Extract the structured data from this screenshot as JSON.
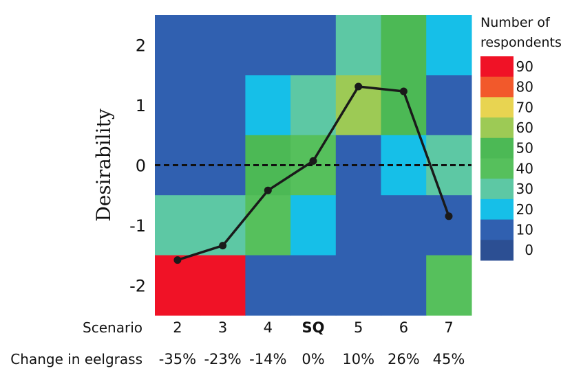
{
  "chart_data": {
    "type": "heatmap",
    "ylabel": "Desirability",
    "y_ticks": [
      "2",
      "1",
      "0",
      "-1",
      "-2"
    ],
    "y_levels": [
      2,
      1,
      0,
      -1,
      -2
    ],
    "row_labels": {
      "scenario": "Scenario",
      "change": "Change in eelgrass"
    },
    "scenarios": [
      "2",
      "3",
      "4",
      "SQ",
      "5",
      "6",
      "7"
    ],
    "highlight_scenario": "SQ",
    "eelgrass_change": [
      "-35%",
      "-23%",
      "-14%",
      "0%",
      "10%",
      "26%",
      "45%"
    ],
    "heatmap_values": [
      [
        8,
        7,
        7,
        7,
        33,
        46,
        20
      ],
      [
        9,
        9,
        20,
        31,
        60,
        45,
        8
      ],
      [
        7,
        7,
        45,
        42,
        10,
        15,
        32
      ],
      [
        32,
        30,
        43,
        21,
        10,
        10,
        13
      ],
      [
        92,
        98,
        14,
        10,
        10,
        12,
        43
      ]
    ],
    "mean_line": {
      "x": [
        "2",
        "3",
        "4",
        "SQ",
        "5",
        "6",
        "7"
      ],
      "y": [
        -1.58,
        -1.34,
        -0.42,
        0.07,
        1.31,
        1.23,
        -0.85
      ]
    },
    "reference_line_y": 0,
    "colorbar": {
      "title_lines": [
        "Number of",
        "respondents"
      ],
      "ticks": [
        "90",
        "80",
        "70",
        "60",
        "50",
        "40",
        "30",
        "20",
        "10",
        "0"
      ],
      "colors": [
        "#f01226",
        "#f2592b",
        "#e8d451",
        "#9dca55",
        "#4cb955",
        "#56c05c",
        "#5dc8a4",
        "#16bfe8",
        "#3060b0",
        "#2c4f93"
      ]
    }
  }
}
